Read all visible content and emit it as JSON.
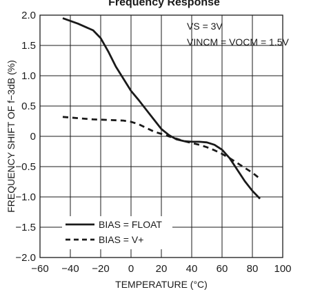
{
  "chart_data": {
    "type": "line",
    "title": "Frequency Response",
    "xlabel": "TEMPERATURE (°C)",
    "ylabel": "FREQUENCY SHIFT OF f−3dB (%)",
    "xlim": [
      -60,
      100
    ],
    "ylim": [
      -2.0,
      2.0
    ],
    "xticks": [
      "−60",
      "−40",
      "−20",
      "0",
      "20",
      "40",
      "60",
      "80",
      "100"
    ],
    "yticks": [
      "2.0",
      "1.5",
      "1.0",
      "0.5",
      "0",
      "−0.5",
      "−1.0",
      "−1.5",
      "−2.0"
    ],
    "xtick_values": [
      -60,
      -40,
      -20,
      0,
      20,
      40,
      60,
      80,
      100
    ],
    "ytick_values": [
      2.0,
      1.5,
      1.0,
      0.5,
      0,
      -0.5,
      -1.0,
      -1.5,
      -2.0
    ],
    "grid": true,
    "annotation": {
      "vs": "VS = 3V",
      "vincm": "VINCM = VOCM = 1.5V"
    },
    "legend_position": "bottom-left",
    "series": [
      {
        "name": "BIAS = FLOAT",
        "style": "solid",
        "x": [
          -45,
          -35,
          -25,
          -20,
          -15,
          -10,
          -5,
          0,
          5,
          10,
          15,
          20,
          25,
          30,
          35,
          40,
          45,
          50,
          55,
          60,
          65,
          70,
          75,
          80,
          85
        ],
        "y": [
          1.95,
          1.86,
          1.75,
          1.62,
          1.4,
          1.15,
          0.95,
          0.75,
          0.6,
          0.44,
          0.28,
          0.12,
          0.02,
          -0.05,
          -0.08,
          -0.09,
          -0.09,
          -0.1,
          -0.14,
          -0.22,
          -0.36,
          -0.55,
          -0.74,
          -0.9,
          -1.03
        ]
      },
      {
        "name": "BIAS = V+",
        "style": "dashed",
        "x": [
          -45,
          -35,
          -25,
          -15,
          -5,
          0,
          5,
          10,
          15,
          20,
          25,
          30,
          35,
          40,
          45,
          50,
          55,
          60,
          65,
          70,
          75,
          80,
          85
        ],
        "y": [
          0.32,
          0.3,
          0.28,
          0.27,
          0.26,
          0.24,
          0.2,
          0.14,
          0.08,
          0.04,
          0.0,
          -0.04,
          -0.08,
          -0.11,
          -0.14,
          -0.18,
          -0.23,
          -0.29,
          -0.36,
          -0.44,
          -0.52,
          -0.6,
          -0.7
        ]
      }
    ],
    "colors": {
      "line": "#1a1a1a",
      "grid": "#1a1a1a",
      "background": "#ffffff"
    }
  }
}
